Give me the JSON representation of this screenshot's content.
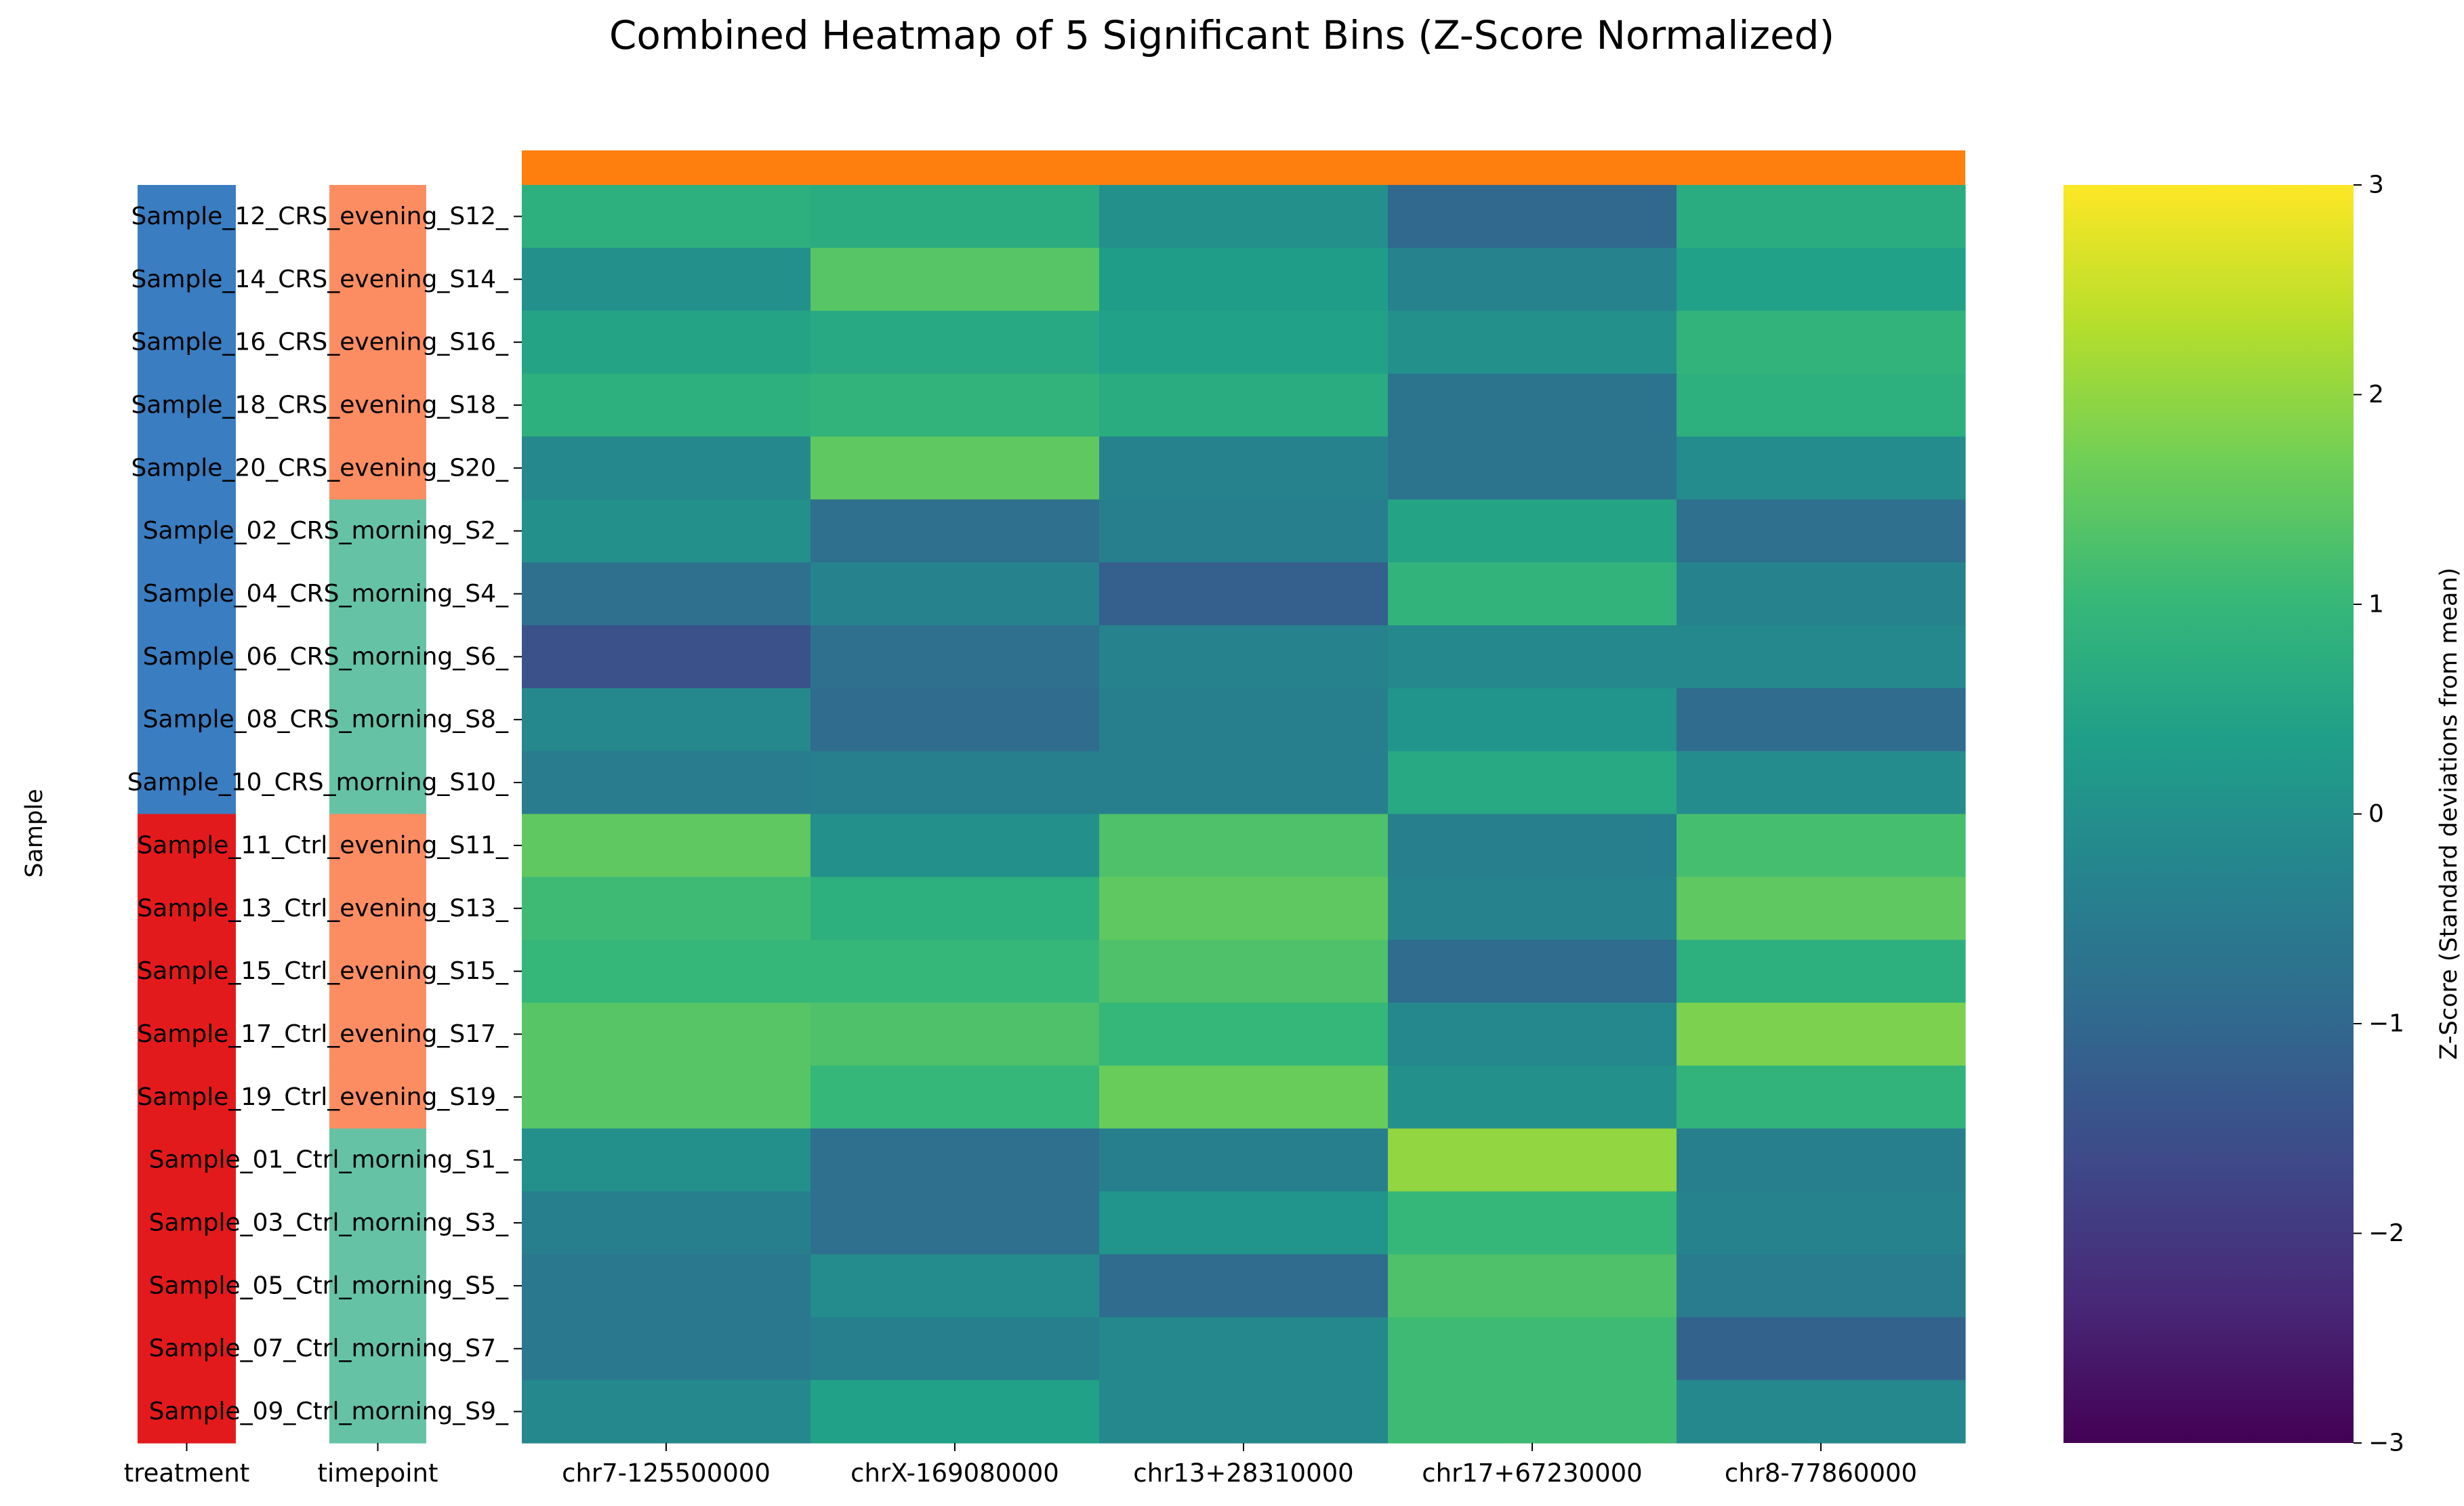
{
  "chart_data": {
    "type": "heatmap",
    "title": "Combined Heatmap of 5 Significant Bins (Z-Score Normalized)",
    "ylabel": "Sample",
    "colorbar_label": "Z-Score (Standard deviations from mean)",
    "colorbar_ticks": [
      "3",
      "2",
      "1",
      "0",
      "−1",
      "−2",
      "−3"
    ],
    "colorbar_tick_values": [
      3,
      2,
      1,
      0,
      -1,
      -2,
      -3
    ],
    "vmin": -3,
    "vmax": 3,
    "colormap": "viridis",
    "viridis_stops": [
      "#440154",
      "#482878",
      "#3e4989",
      "#31688e",
      "#26828e",
      "#1f9e89",
      "#35b779",
      "#6ece58",
      "#b5de2b",
      "#fde725"
    ],
    "top_annotation_color": "#ff7f0e",
    "row_annotation_labels": [
      "treatment",
      "timepoint"
    ],
    "annotation_colors": {
      "CRS": "#3a7dc0",
      "Ctrl": "#e31a1c",
      "evening": "#fc8d62",
      "morning": "#66c2a5"
    },
    "columns": [
      "chr7-125500000",
      "chrX-169080000",
      "chr13+28310000",
      "chr17+67230000",
      "chr8-77860000"
    ],
    "rows": [
      {
        "label": "Sample_12_CRS_evening_S12_",
        "treatment": "CRS",
        "timepoint": "evening",
        "values": [
          0.8,
          0.7,
          0.0,
          -1.0,
          0.7
        ]
      },
      {
        "label": "Sample_14_CRS_evening_S14_",
        "treatment": "CRS",
        "timepoint": "evening",
        "values": [
          0.0,
          1.4,
          0.3,
          -0.3,
          0.4
        ]
      },
      {
        "label": "Sample_16_CRS_evening_S16_",
        "treatment": "CRS",
        "timepoint": "evening",
        "values": [
          0.5,
          0.6,
          0.4,
          0.0,
          0.9
        ]
      },
      {
        "label": "Sample_18_CRS_evening_S18_",
        "treatment": "CRS",
        "timepoint": "evening",
        "values": [
          0.8,
          0.9,
          0.7,
          -0.7,
          0.8
        ]
      },
      {
        "label": "Sample_20_CRS_evening_S20_",
        "treatment": "CRS",
        "timepoint": "evening",
        "values": [
          -0.2,
          1.5,
          -0.3,
          -0.7,
          -0.1
        ]
      },
      {
        "label": "Sample_02_CRS_morning_S2_",
        "treatment": "CRS",
        "timepoint": "morning",
        "values": [
          0.0,
          -0.8,
          -0.4,
          0.5,
          -0.8
        ]
      },
      {
        "label": "Sample_04_CRS_morning_S4_",
        "treatment": "CRS",
        "timepoint": "morning",
        "values": [
          -0.8,
          -0.3,
          -1.2,
          0.9,
          -0.3
        ]
      },
      {
        "label": "Sample_06_CRS_morning_S6_",
        "treatment": "CRS",
        "timepoint": "morning",
        "values": [
          -1.5,
          -0.8,
          -0.3,
          -0.2,
          -0.2
        ]
      },
      {
        "label": "Sample_08_CRS_morning_S8_",
        "treatment": "CRS",
        "timepoint": "morning",
        "values": [
          -0.2,
          -0.9,
          -0.4,
          0.1,
          -0.9
        ]
      },
      {
        "label": "Sample_10_CRS_morning_S10_",
        "treatment": "CRS",
        "timepoint": "morning",
        "values": [
          -0.5,
          -0.4,
          -0.4,
          0.6,
          -0.1
        ]
      },
      {
        "label": "Sample_11_Ctrl_evening_S11_",
        "treatment": "Ctrl",
        "timepoint": "evening",
        "values": [
          1.5,
          0.0,
          1.3,
          -0.4,
          1.2
        ]
      },
      {
        "label": "Sample_13_Ctrl_evening_S13_",
        "treatment": "Ctrl",
        "timepoint": "evening",
        "values": [
          1.1,
          0.8,
          1.5,
          -0.3,
          1.5
        ]
      },
      {
        "label": "Sample_15_Ctrl_evening_S15_",
        "treatment": "Ctrl",
        "timepoint": "evening",
        "values": [
          1.0,
          1.0,
          1.3,
          -0.9,
          0.8
        ]
      },
      {
        "label": "Sample_17_Ctrl_evening_S17_",
        "treatment": "Ctrl",
        "timepoint": "evening",
        "values": [
          1.4,
          1.3,
          1.0,
          -0.2,
          1.8
        ]
      },
      {
        "label": "Sample_19_Ctrl_evening_S19_",
        "treatment": "Ctrl",
        "timepoint": "evening",
        "values": [
          1.4,
          1.0,
          1.6,
          0.0,
          0.9
        ]
      },
      {
        "label": "Sample_01_Ctrl_morning_S1_",
        "treatment": "Ctrl",
        "timepoint": "morning",
        "values": [
          0.0,
          -0.8,
          -0.4,
          2.0,
          -0.4
        ]
      },
      {
        "label": "Sample_03_Ctrl_morning_S3_",
        "treatment": "Ctrl",
        "timepoint": "morning",
        "values": [
          -0.4,
          -0.8,
          0.1,
          1.0,
          -0.3
        ]
      },
      {
        "label": "Sample_05_Ctrl_morning_S5_",
        "treatment": "Ctrl",
        "timepoint": "morning",
        "values": [
          -0.6,
          -0.1,
          -0.9,
          1.3,
          -0.5
        ]
      },
      {
        "label": "Sample_07_Ctrl_morning_S7_",
        "treatment": "Ctrl",
        "timepoint": "morning",
        "values": [
          -0.6,
          -0.4,
          -0.2,
          1.1,
          -1.1
        ]
      },
      {
        "label": "Sample_09_Ctrl_morning_S9_",
        "treatment": "Ctrl",
        "timepoint": "morning",
        "values": [
          -0.2,
          0.4,
          -0.2,
          1.1,
          -0.2
        ]
      }
    ]
  }
}
